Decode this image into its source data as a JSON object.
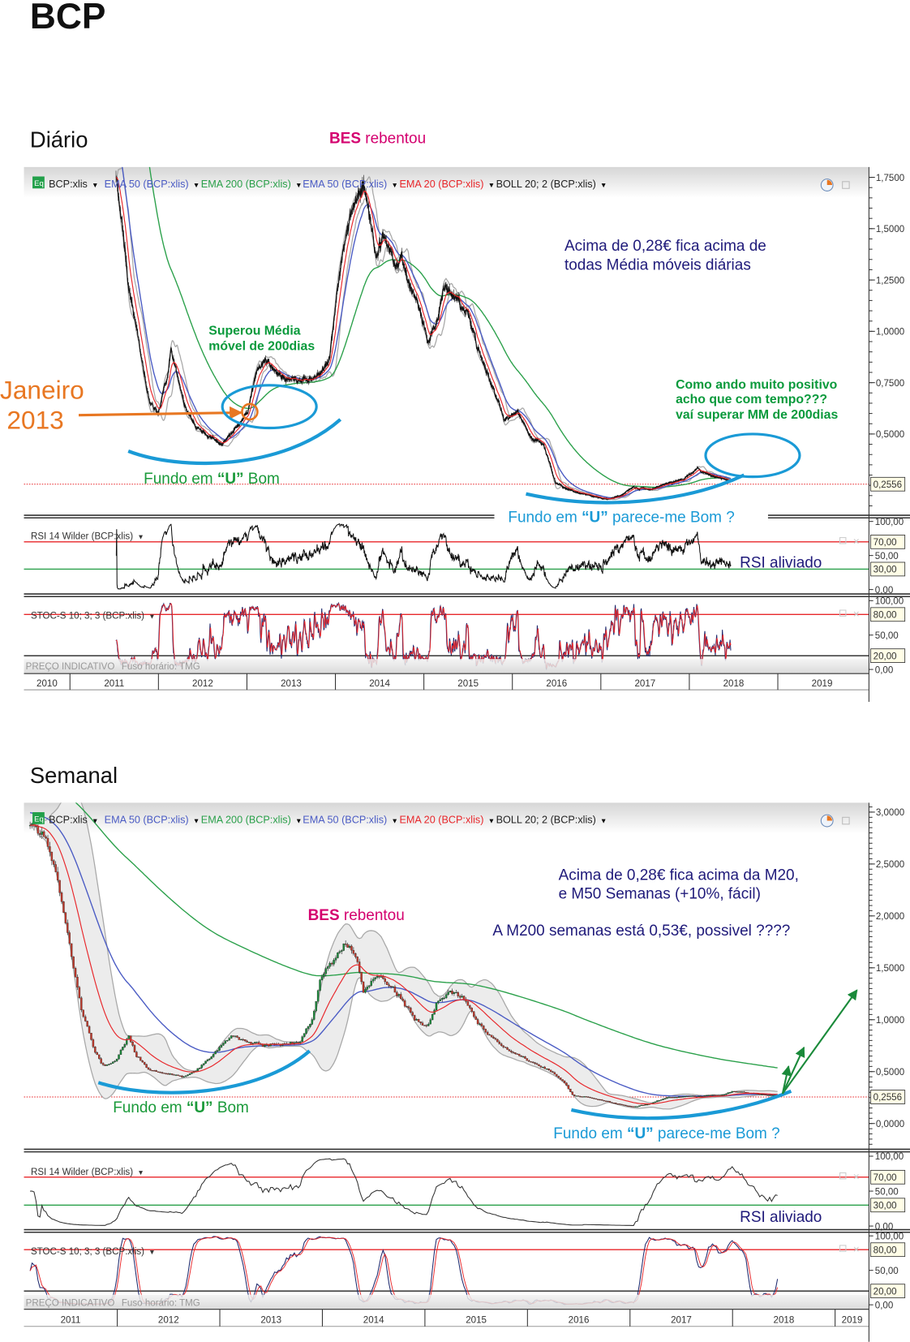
{
  "header": {
    "title": "BCP"
  },
  "daily": {
    "section_title": "Diário",
    "eq_badge": "Eq",
    "legend": [
      {
        "label": "BCP:xlis",
        "color": "#222222"
      },
      {
        "label": "EMA 50 (BCP:xlis)",
        "color": "#4a5bc4"
      },
      {
        "label": "EMA 200 (BCP:xlis)",
        "color": "#2aa04a"
      },
      {
        "label": "EMA 50 (BCP:xlis)",
        "color": "#4a5bc4"
      },
      {
        "label": "EMA 20 (BCP:xlis)",
        "color": "#e8262a"
      },
      {
        "label": "BOLL 20; 2 (BCP:xlis)",
        "color": "#222222"
      }
    ],
    "rsi_label": "RSI 14 Wilder (BCP:xlis)",
    "stoch_label": "STOC-S 10; 3; 3 (BCP:xlis)",
    "footer_note": "PREÇO INDICATIVO",
    "timezone": "Fuso horário: TMG",
    "annotations": {
      "bes_bold": "BES",
      "bes_rest": " rebentou",
      "note_line1": "Acima de 0,28€ fica acima de",
      "note_line2": "todas Média móveis diárias",
      "superou_line1": "Superou Média",
      "superou_line2": "móvel de 200dias",
      "como_line1": "Como ando muito positivo",
      "como_line2": "acho que com tempo???",
      "como_line3": "vaí superar MM de 200dias",
      "janeiro": "Janeiro",
      "janeiro_year": "2013",
      "fundo_pre": "Fundo em ",
      "fundo_u": "“U”",
      "fundo_bom": " Bom",
      "fundo_q": " parece-me Bom ?",
      "rsi_note": "RSI aliviado"
    }
  },
  "weekly": {
    "section_title": "Semanal",
    "eq_badge": "Eq",
    "legend": [
      {
        "label": "BCP:xlis",
        "color": "#222222"
      },
      {
        "label": "EMA 50 (BCP:xlis)",
        "color": "#4a5bc4"
      },
      {
        "label": "EMA 200 (BCP:xlis)",
        "color": "#2aa04a"
      },
      {
        "label": "EMA 50 (BCP:xlis)",
        "color": "#4a5bc4"
      },
      {
        "label": "EMA 20 (BCP:xlis)",
        "color": "#e8262a"
      },
      {
        "label": "BOLL 20; 2 (BCP:xlis)",
        "color": "#222222"
      }
    ],
    "rsi_label": "RSI 14 Wilder (BCP:xlis)",
    "stoch_label": "STOC-S 10; 3; 3 (BCP:xlis)",
    "footer_note": "PREÇO INDICATIVO",
    "timezone": "Fuso horário: TMG",
    "annotations": {
      "bes_bold": "BES",
      "bes_rest": " rebentou",
      "note_line1": "Acima de 0,28€ fica acima da M20,",
      "note_line2": "e M50 Semanas  (+10%, fácil)",
      "note_line3": "A M200 semanas está 0,53€, possivel  ????",
      "fundo_pre": "Fundo em ",
      "fundo_u": "“U”",
      "fundo_bom": " Bom",
      "fundo_q": " parece-me Bom ?",
      "rsi_note": "RSI aliviado"
    }
  },
  "colors": {
    "price": "#111111",
    "ema50": "#4a5bc4",
    "ema200": "#2aa04a",
    "ema20": "#e8262a",
    "boll": "#a8a8a8",
    "boll_fill": "#ececec",
    "candle_up": "#1a8a3a",
    "candle_down": "#c0392b",
    "rsi_upper": "#e8262a",
    "rsi_lower": "#2aa04a",
    "stoch_k": "#1f2a6e",
    "stoch_d": "#e8262a",
    "annotation_blue": "#1a9ad6",
    "annotation_orange": "#e87722",
    "annotation_green": "#0a9a3c",
    "bes": "#d4006f"
  },
  "chart_data": [
    {
      "type": "line",
      "title": "Diário",
      "frequency": "daily",
      "x_unit": "year",
      "xlim": [
        2010.48,
        2020.03
      ],
      "xtick_labels": [
        "2010",
        "2011",
        "2012",
        "2013",
        "2014",
        "2015",
        "2016",
        "2017",
        "2018",
        "2019"
      ],
      "ylim": [
        0.1125,
        1.8
      ],
      "yticks": [
        1.75,
        1.5,
        1.25,
        1.0,
        0.75,
        0.5
      ],
      "ytick_labels": [
        "1,7500",
        "1,5000",
        "1,2500",
        "1,0000",
        "0,7500",
        "0,5000"
      ],
      "last_value": 0.2556,
      "last_value_label": "0,2556",
      "price_keypoints": {
        "t": [
          2011.52,
          2011.66,
          2011.81,
          2011.9,
          2012.0,
          2012.1,
          2012.14,
          2012.19,
          2012.29,
          2012.43,
          2012.58,
          2012.72,
          2012.87,
          2013.01,
          2013.11,
          2013.21,
          2013.4,
          2013.59,
          2013.79,
          2013.93,
          2014.03,
          2014.13,
          2014.22,
          2014.32,
          2014.37,
          2014.46,
          2014.56,
          2014.66,
          2014.75,
          2014.85,
          2014.95,
          2015.04,
          2015.14,
          2015.24,
          2015.33,
          2015.48,
          2015.62,
          2015.77,
          2015.91,
          2016.06,
          2016.2,
          2016.35,
          2016.49,
          2016.69,
          2016.88,
          2017.07,
          2017.22,
          2017.36,
          2017.56,
          2017.75,
          2017.94,
          2018.09,
          2018.23,
          2018.47
        ],
        "v": [
          1.78,
          1.24,
          0.86,
          0.65,
          0.61,
          0.78,
          0.9,
          0.82,
          0.65,
          0.53,
          0.49,
          0.45,
          0.53,
          0.61,
          0.82,
          0.86,
          0.78,
          0.76,
          0.78,
          0.86,
          1.24,
          1.49,
          1.62,
          1.72,
          1.61,
          1.36,
          1.49,
          1.32,
          1.36,
          1.2,
          1.11,
          0.95,
          1.03,
          1.24,
          1.17,
          1.11,
          0.9,
          0.74,
          0.57,
          0.61,
          0.49,
          0.45,
          0.26,
          0.22,
          0.2,
          0.18,
          0.2,
          0.24,
          0.23,
          0.26,
          0.28,
          0.33,
          0.3,
          0.27
        ]
      },
      "ema_periods": [
        20,
        50,
        200
      ],
      "ema_seed": {
        "50": 2.0,
        "200": 3.0
      },
      "bollinger": {
        "period": 20,
        "k": 2
      },
      "rsi": {
        "period": 14,
        "levels": [
          70,
          30
        ],
        "ylim": [
          -4,
          104
        ],
        "tick_values": [
          100,
          50,
          0
        ],
        "tick_labels": [
          "100,00",
          "50,00",
          "0,00"
        ],
        "level_labels": [
          "70,00",
          "30,00"
        ]
      },
      "stoch": {
        "k": 10,
        "slow": 3,
        "d": 3,
        "levels": [
          80,
          20
        ],
        "ylim": [
          -6,
          106
        ],
        "tick_values": [
          100,
          50,
          0
        ],
        "tick_labels": [
          "100,00",
          "50,00",
          "0,00"
        ],
        "level_labels": [
          "80,00",
          "20,00"
        ]
      }
    },
    {
      "type": "line",
      "title": "Semanal",
      "frequency": "weekly",
      "x_unit": "year",
      "xlim": [
        2011.09,
        2019.33
      ],
      "xtick_labels": [
        "2011",
        "2012",
        "2013",
        "2014",
        "2015",
        "2016",
        "2017",
        "2018",
        "2019"
      ],
      "ylim": [
        -0.24,
        3.09
      ],
      "yticks": [
        3.0,
        2.5,
        2.0,
        1.5,
        1.0,
        0.5,
        0.0
      ],
      "ytick_labels": [
        "3,0000",
        "2,5000",
        "2,0000",
        "1,5000",
        "1,0000",
        "0,5000",
        "0,0000"
      ],
      "last_value": 0.2556,
      "last_value_label": "0,2556",
      "price_keypoints": {
        "t": [
          2011.15,
          2011.28,
          2011.4,
          2011.53,
          2011.65,
          2011.78,
          2011.86,
          2011.98,
          2012.11,
          2012.19,
          2012.32,
          2012.48,
          2012.65,
          2012.82,
          2012.98,
          2013.11,
          2013.28,
          2013.44,
          2013.61,
          2013.78,
          2013.9,
          2013.98,
          2014.11,
          2014.23,
          2014.32,
          2014.4,
          2014.53,
          2014.65,
          2014.78,
          2014.9,
          2015.03,
          2015.11,
          2015.23,
          2015.36,
          2015.48,
          2015.61,
          2015.73,
          2015.86,
          2016.03,
          2016.19,
          2016.36,
          2016.44,
          2016.61,
          2016.78,
          2017.03,
          2017.19,
          2017.36,
          2017.61,
          2017.86,
          2018.03,
          2018.19,
          2018.44
        ],
        "v": [
          2.87,
          2.79,
          2.42,
          1.75,
          1.1,
          0.69,
          0.56,
          0.6,
          0.85,
          0.64,
          0.52,
          0.48,
          0.45,
          0.56,
          0.72,
          0.85,
          0.8,
          0.77,
          0.77,
          0.8,
          1.01,
          1.42,
          1.59,
          1.75,
          1.67,
          1.26,
          1.42,
          1.34,
          1.17,
          1.01,
          0.93,
          1.17,
          1.26,
          1.22,
          1.01,
          0.85,
          0.77,
          0.68,
          0.6,
          0.52,
          0.4,
          0.27,
          0.25,
          0.21,
          0.16,
          0.19,
          0.25,
          0.26,
          0.27,
          0.31,
          0.29,
          0.27
        ]
      },
      "ema_periods": [
        20,
        50,
        200
      ],
      "ema_seed": {
        "50": 3.0,
        "200": 3.3
      },
      "ema200_current": 0.53,
      "bollinger": {
        "period": 20,
        "k": 2
      },
      "rsi": {
        "period": 14,
        "levels": [
          70,
          30
        ],
        "ylim": [
          -4,
          105
        ],
        "tick_values": [
          100,
          50,
          0
        ],
        "tick_labels": [
          "100,00",
          "50,00",
          "0,00"
        ],
        "level_labels": [
          "70,00",
          "30,00"
        ]
      },
      "stoch": {
        "k": 10,
        "slow": 3,
        "d": 3,
        "levels": [
          80,
          20
        ],
        "ylim": [
          -4,
          104
        ],
        "tick_values": [
          100,
          50,
          0
        ],
        "tick_labels": [
          "100,00",
          "50,00",
          "0,00"
        ],
        "level_labels": [
          "80,00",
          "20,00"
        ]
      }
    }
  ]
}
